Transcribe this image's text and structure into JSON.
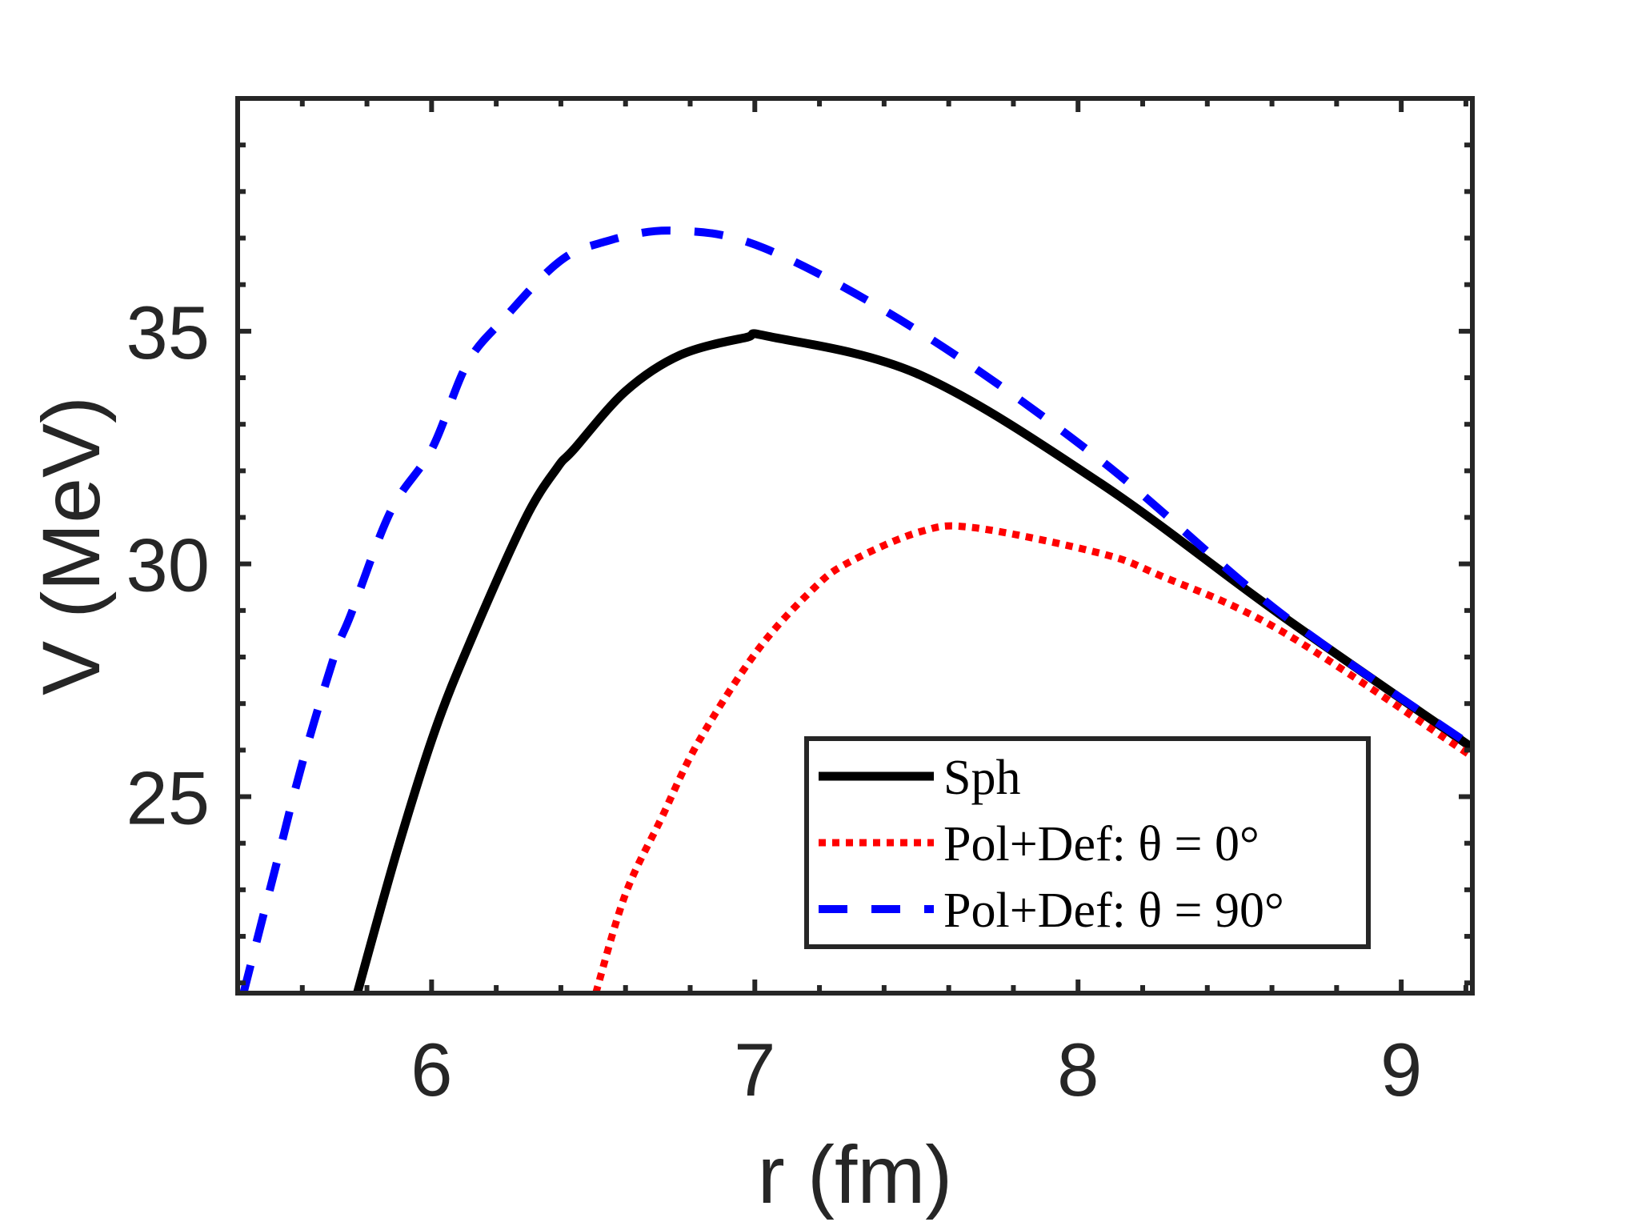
{
  "chart_data": {
    "type": "line",
    "title": "",
    "xlabel": "r (fm)",
    "ylabel": "V (MeV)",
    "xlim": [
      5.4,
      9.22
    ],
    "ylim": [
      20.78,
      40
    ],
    "xticks": [
      6,
      7,
      8,
      9
    ],
    "xtick_labels": [
      "6",
      "7",
      "8",
      "9"
    ],
    "x_minor_step": 0.2,
    "yticks": [
      25,
      30,
      35
    ],
    "ytick_labels": [
      "25",
      "30",
      "35"
    ],
    "y_minor_step": 1,
    "grid": false,
    "box": true,
    "legend": {
      "placement": "bottom-right",
      "entries": [
        "Sph",
        "Pol+Def: θ = 0°",
        "Pol+Def: θ = 90°"
      ]
    },
    "series": [
      {
        "name": "Sph",
        "color": "#000000",
        "style": "solid",
        "x": [
          5.77,
          5.893,
          6.01,
          6.124,
          6.29,
          6.389,
          6.44,
          6.6,
          6.77,
          6.97,
          7.048,
          7.511,
          8.068,
          8.626,
          9.22
        ],
        "y": [
          20.78,
          23.83,
          26.41,
          28.4,
          30.97,
          32.07,
          32.46,
          33.71,
          34.49,
          34.86,
          34.88,
          34.06,
          31.74,
          28.91,
          26.05
        ]
      },
      {
        "name": "Pol+Def: θ = 0°",
        "color": "#ff0000",
        "style": "dotted",
        "x": [
          6.508,
          6.6,
          6.71,
          6.825,
          7.008,
          7.18,
          7.29,
          7.511,
          7.677,
          8.068,
          8.254,
          8.626,
          9.22
        ],
        "y": [
          20.78,
          22.91,
          24.52,
          26.17,
          28.14,
          29.46,
          30.03,
          30.69,
          30.78,
          30.23,
          29.75,
          28.57,
          25.86
        ]
      },
      {
        "name": "Pol+Def: θ = 90°",
        "color": "#0000ff",
        "style": "dashed",
        "x": [
          5.418,
          5.515,
          5.6,
          5.7,
          5.75,
          5.874,
          6.0,
          6.11,
          6.223,
          6.389,
          6.52,
          6.743,
          7.03,
          7.511,
          8.068,
          8.626,
          9.22
        ],
        "y": [
          20.78,
          23.42,
          25.72,
          28.04,
          28.91,
          31.14,
          32.46,
          34.3,
          35.26,
          36.46,
          36.89,
          37.16,
          36.78,
          34.98,
          32.24,
          28.95,
          26.08
        ]
      }
    ]
  }
}
